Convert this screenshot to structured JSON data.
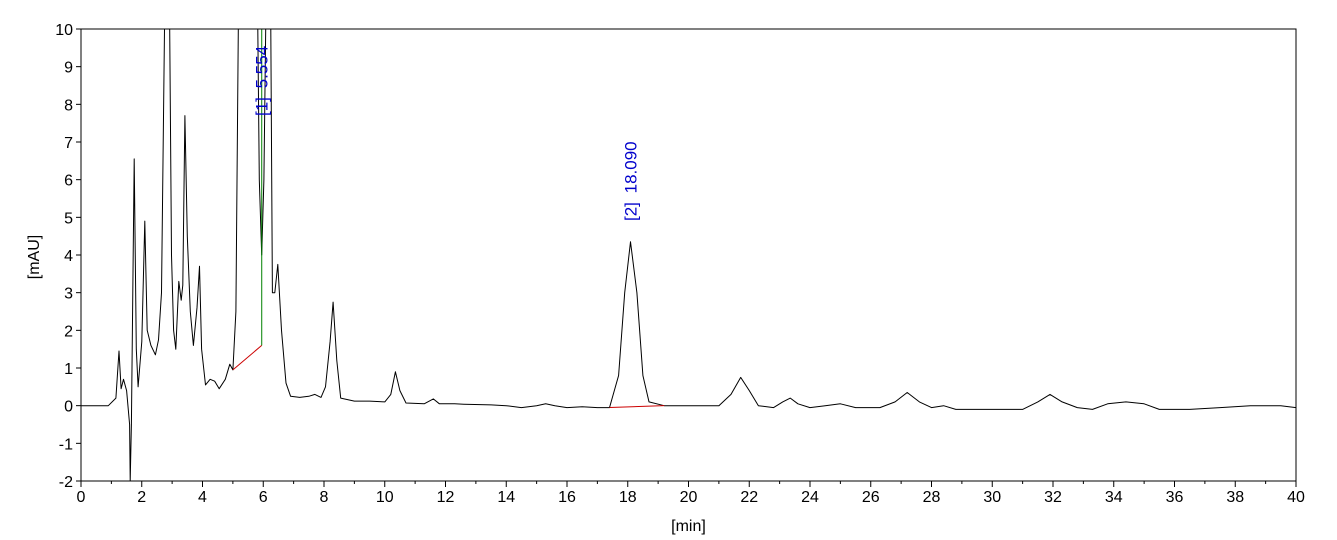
{
  "chart_data": {
    "type": "line",
    "xlabel": "[min]",
    "ylabel": "[mAU]",
    "xlim": [
      0,
      40
    ],
    "ylim": [
      -2,
      10
    ],
    "x_ticks": [
      "0",
      "2",
      "4",
      "6",
      "8",
      "10",
      "12",
      "14",
      "16",
      "18",
      "20",
      "22",
      "24",
      "26",
      "28",
      "30",
      "32",
      "34",
      "36",
      "38",
      "40"
    ],
    "y_ticks": [
      "-2",
      "-1",
      "0",
      "1",
      "2",
      "3",
      "4",
      "5",
      "6",
      "7",
      "8",
      "9",
      "10"
    ],
    "grid": false,
    "peak_labels": [
      {
        "index": "[1]",
        "time": "5.554",
        "x": 5.95
      },
      {
        "index": "[2]",
        "time": "18.090",
        "x": 18.09
      }
    ],
    "colors": {
      "trace": "#000000",
      "axis": "#000000",
      "label": "#0000cc",
      "baseline": "#cc0000",
      "drop_line": "#008000"
    },
    "baselines": [
      {
        "from": [
          5.0,
          0.95
        ],
        "to": [
          5.95,
          1.6
        ]
      },
      {
        "from": [
          17.4,
          -0.05
        ],
        "to": [
          19.2,
          0.0
        ]
      }
    ],
    "drop_lines": [
      {
        "x": 5.95,
        "from": 1.6,
        "to": 10
      }
    ],
    "series": [
      {
        "values": [
          [
            0.0,
            0.0
          ],
          [
            0.9,
            0.0
          ],
          [
            1.15,
            0.2
          ],
          [
            1.25,
            1.45
          ],
          [
            1.32,
            0.45
          ],
          [
            1.4,
            0.7
          ],
          [
            1.5,
            0.4
          ],
          [
            1.6,
            -0.5
          ],
          [
            1.62,
            -2.0
          ],
          [
            1.66,
            -0.5
          ],
          [
            1.75,
            6.55
          ],
          [
            1.82,
            1.5
          ],
          [
            1.88,
            0.5
          ],
          [
            2.0,
            1.7
          ],
          [
            2.1,
            4.9
          ],
          [
            2.18,
            2.0
          ],
          [
            2.3,
            1.6
          ],
          [
            2.45,
            1.35
          ],
          [
            2.55,
            1.75
          ],
          [
            2.65,
            3.0
          ],
          [
            2.75,
            10.0
          ],
          [
            2.92,
            10.0
          ],
          [
            2.98,
            4.0
          ],
          [
            3.05,
            2.0
          ],
          [
            3.12,
            1.5
          ],
          [
            3.22,
            3.3
          ],
          [
            3.3,
            2.8
          ],
          [
            3.35,
            3.2
          ],
          [
            3.42,
            7.7
          ],
          [
            3.5,
            4.5
          ],
          [
            3.6,
            2.5
          ],
          [
            3.7,
            1.6
          ],
          [
            3.82,
            2.6
          ],
          [
            3.9,
            3.7
          ],
          [
            3.97,
            1.5
          ],
          [
            4.1,
            0.55
          ],
          [
            4.25,
            0.7
          ],
          [
            4.4,
            0.65
          ],
          [
            4.55,
            0.45
          ],
          [
            4.75,
            0.7
          ],
          [
            4.9,
            1.1
          ],
          [
            5.0,
            0.95
          ],
          [
            5.1,
            2.5
          ],
          [
            5.18,
            10.0
          ],
          [
            5.82,
            10.0
          ],
          [
            5.87,
            6.0
          ],
          [
            5.95,
            4.0
          ],
          [
            6.02,
            6.0
          ],
          [
            6.08,
            10.0
          ],
          [
            6.25,
            10.0
          ],
          [
            6.3,
            3.0
          ],
          [
            6.38,
            3.0
          ],
          [
            6.48,
            3.75
          ],
          [
            6.6,
            2.0
          ],
          [
            6.75,
            0.6
          ],
          [
            6.9,
            0.25
          ],
          [
            7.2,
            0.22
          ],
          [
            7.5,
            0.25
          ],
          [
            7.7,
            0.3
          ],
          [
            7.9,
            0.22
          ],
          [
            8.05,
            0.5
          ],
          [
            8.2,
            1.7
          ],
          [
            8.3,
            2.75
          ],
          [
            8.42,
            1.2
          ],
          [
            8.55,
            0.2
          ],
          [
            9.0,
            0.12
          ],
          [
            9.5,
            0.12
          ],
          [
            10.0,
            0.1
          ],
          [
            10.2,
            0.3
          ],
          [
            10.35,
            0.9
          ],
          [
            10.5,
            0.4
          ],
          [
            10.7,
            0.07
          ],
          [
            11.3,
            0.05
          ],
          [
            11.6,
            0.18
          ],
          [
            11.8,
            0.05
          ],
          [
            12.3,
            0.05
          ],
          [
            12.6,
            0.04
          ],
          [
            13.5,
            0.02
          ],
          [
            14.0,
            0.0
          ],
          [
            14.5,
            -0.05
          ],
          [
            15.0,
            0.0
          ],
          [
            15.3,
            0.05
          ],
          [
            15.6,
            0.0
          ],
          [
            16.0,
            -0.05
          ],
          [
            16.5,
            -0.03
          ],
          [
            17.0,
            -0.05
          ],
          [
            17.4,
            -0.05
          ],
          [
            17.7,
            0.8
          ],
          [
            17.9,
            3.0
          ],
          [
            18.09,
            4.35
          ],
          [
            18.3,
            3.0
          ],
          [
            18.5,
            0.8
          ],
          [
            18.7,
            0.1
          ],
          [
            19.2,
            0.0
          ],
          [
            20.0,
            0.0
          ],
          [
            21.0,
            0.0
          ],
          [
            21.4,
            0.3
          ],
          [
            21.72,
            0.75
          ],
          [
            22.0,
            0.4
          ],
          [
            22.3,
            0.0
          ],
          [
            22.8,
            -0.05
          ],
          [
            23.1,
            0.1
          ],
          [
            23.35,
            0.2
          ],
          [
            23.6,
            0.05
          ],
          [
            24.0,
            -0.05
          ],
          [
            24.5,
            0.0
          ],
          [
            25.0,
            0.05
          ],
          [
            25.5,
            -0.05
          ],
          [
            26.3,
            -0.05
          ],
          [
            26.8,
            0.1
          ],
          [
            27.2,
            0.35
          ],
          [
            27.6,
            0.1
          ],
          [
            28.0,
            -0.05
          ],
          [
            28.4,
            0.0
          ],
          [
            28.8,
            -0.1
          ],
          [
            30.0,
            -0.1
          ],
          [
            31.0,
            -0.1
          ],
          [
            31.5,
            0.1
          ],
          [
            31.9,
            0.3
          ],
          [
            32.3,
            0.1
          ],
          [
            32.8,
            -0.05
          ],
          [
            33.3,
            -0.1
          ],
          [
            33.8,
            0.05
          ],
          [
            34.4,
            0.1
          ],
          [
            35.0,
            0.05
          ],
          [
            35.5,
            -0.1
          ],
          [
            36.5,
            -0.1
          ],
          [
            37.5,
            -0.05
          ],
          [
            38.5,
            0.0
          ],
          [
            39.5,
            0.0
          ],
          [
            40.0,
            -0.05
          ]
        ]
      }
    ]
  }
}
